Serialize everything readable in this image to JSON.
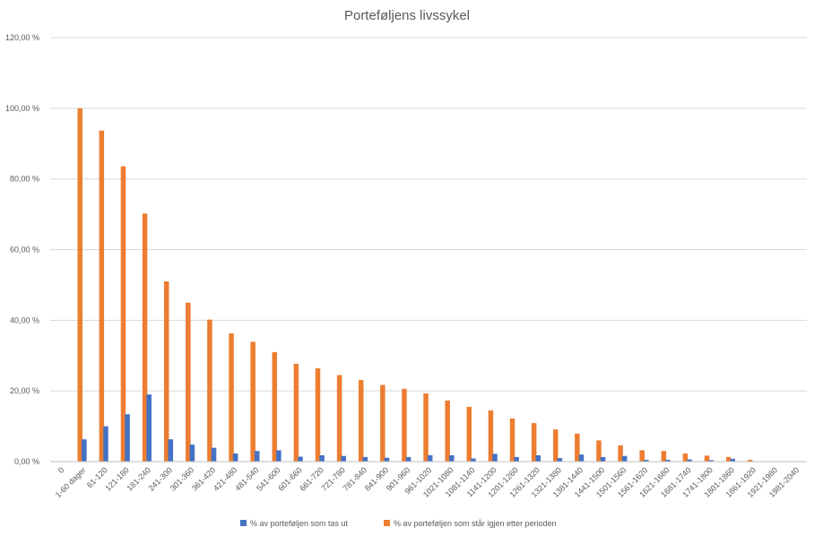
{
  "chart_data": {
    "type": "bar",
    "title": "Porteføljens livssykel",
    "xlabel": "",
    "ylabel": "",
    "ylim": [
      0,
      120
    ],
    "yticks": [
      "0,00 %",
      "20,00 %",
      "40,00 %",
      "60,00 %",
      "80,00 %",
      "100,00 %",
      "120,00 %"
    ],
    "grid": true,
    "legend_position": "bottom",
    "categories": [
      "0",
      "1-60 dager",
      "61-120",
      "121-180",
      "181-240",
      "241-300",
      "301-360",
      "361-420",
      "421-480",
      "481-540",
      "541-600",
      "601-660",
      "661-720",
      "721-780",
      "781-840",
      "841-900",
      "901-960",
      "961-1020",
      "1021-1080",
      "1081-1140",
      "1141-1200",
      "1201-1260",
      "1261-1320",
      "1321-1380",
      "1381-1440",
      "1441-1500",
      "1501-1560",
      "1561-1620",
      "1621-1680",
      "1681-1740",
      "1741-1800",
      "1801-1860",
      "1861-1920",
      "1921-1980",
      "1981-2040"
    ],
    "series": [
      {
        "name": "% av porteføljen som tas ut",
        "color": "#4472C4",
        "values": [
          0,
          6.3,
          10.0,
          13.4,
          19.0,
          6.3,
          4.8,
          3.9,
          2.3,
          3.0,
          3.2,
          1.4,
          1.8,
          1.6,
          1.3,
          1.1,
          1.3,
          1.8,
          1.8,
          0.9,
          2.2,
          1.3,
          1.8,
          1.0,
          2.0,
          1.3,
          1.6,
          0.5,
          0.5,
          0.6,
          0.4,
          0.8,
          0,
          0,
          0
        ]
      },
      {
        "name": "% av porteføljen som står igjen etter perioden",
        "color": "#ED7D31",
        "values": [
          100,
          93.7,
          83.6,
          70.2,
          51.0,
          45.0,
          40.2,
          36.3,
          33.9,
          31.0,
          27.7,
          26.4,
          24.5,
          23.1,
          21.7,
          20.6,
          19.3,
          17.3,
          15.5,
          14.5,
          12.2,
          10.9,
          9.1,
          7.9,
          6.0,
          4.6,
          3.2,
          3.0,
          2.3,
          1.7,
          1.3,
          0.5,
          0,
          0,
          0
        ]
      }
    ]
  }
}
